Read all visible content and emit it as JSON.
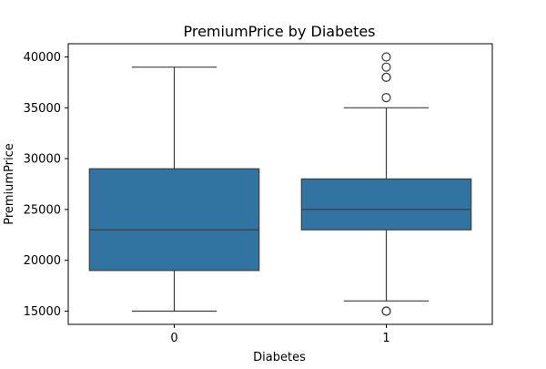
{
  "colors": {
    "box_fill": "#3274a1",
    "line": "#3d3d3d",
    "frame": "#000000",
    "background": "#ffffff"
  },
  "chart_data": {
    "type": "box",
    "title": "PremiumPrice by Diabetes",
    "xlabel": "Diabetes",
    "ylabel": "PremiumPrice",
    "categories": [
      "0",
      "1"
    ],
    "ylim": [
      13700,
      41300
    ],
    "yticks": [
      15000,
      20000,
      25000,
      30000,
      35000,
      40000
    ],
    "ytick_labels": [
      "15000",
      "20000",
      "25000",
      "30000",
      "35000",
      "40000"
    ],
    "grid": false,
    "legend": "none",
    "boxes": [
      {
        "category": "0",
        "whisker_low": 15000,
        "q1": 19000,
        "median": 23000,
        "q3": 29000,
        "whisker_high": 39000,
        "outliers": []
      },
      {
        "category": "1",
        "whisker_low": 16000,
        "q1": 23000,
        "median": 25000,
        "q3": 28000,
        "whisker_high": 35000,
        "outliers": [
          15000,
          15000,
          36000,
          38000,
          38000,
          39000,
          40000
        ]
      }
    ]
  }
}
